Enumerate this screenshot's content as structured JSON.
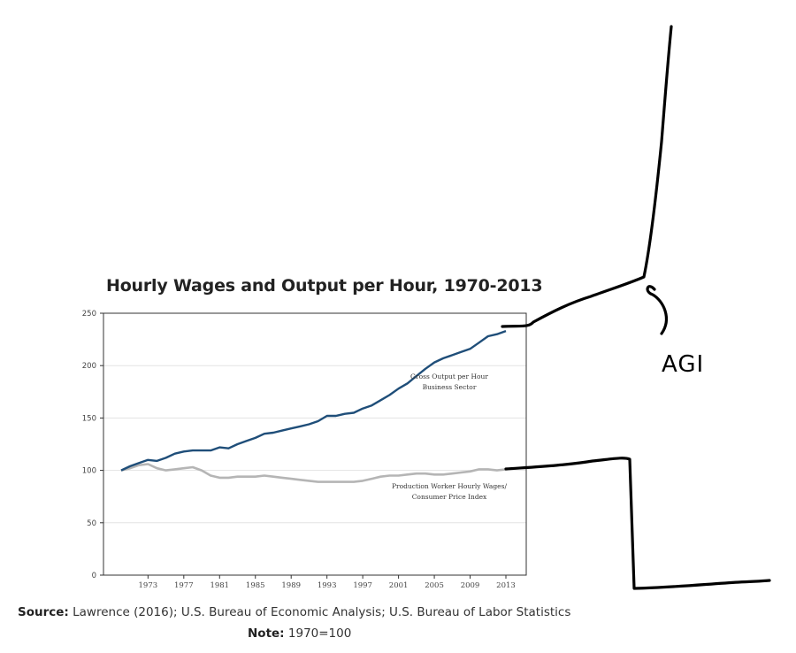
{
  "chart_data": {
    "type": "line",
    "title": "Hourly Wages and Output per Hour, 1970-2013",
    "xlim": [
      1970,
      2013
    ],
    "ylim": [
      0,
      250
    ],
    "y_ticks": [
      0,
      50,
      100,
      150,
      200,
      250
    ],
    "x_ticks": [
      1973,
      1977,
      1981,
      1985,
      1989,
      1993,
      1997,
      2001,
      2005,
      2009,
      2013
    ],
    "grid": true,
    "x": [
      1970,
      1971,
      1972,
      1973,
      1974,
      1975,
      1976,
      1977,
      1978,
      1979,
      1980,
      1981,
      1982,
      1983,
      1984,
      1985,
      1986,
      1987,
      1988,
      1989,
      1990,
      1991,
      1992,
      1993,
      1994,
      1995,
      1996,
      1997,
      1998,
      1999,
      2000,
      2001,
      2002,
      2003,
      2004,
      2005,
      2006,
      2007,
      2008,
      2009,
      2010,
      2011,
      2012,
      2013
    ],
    "series": [
      {
        "name": "Gross Output per Hour Business Sector",
        "label_lines": [
          "Gross Output per Hour",
          "Business Sector"
        ],
        "color": "#1f4e79",
        "values": [
          100,
          104,
          107,
          110,
          109,
          112,
          116,
          118,
          119,
          119,
          119,
          122,
          121,
          125,
          128,
          131,
          135,
          136,
          138,
          140,
          142,
          144,
          147,
          152,
          152,
          154,
          155,
          159,
          162,
          167,
          172,
          178,
          183,
          190,
          197,
          203,
          207,
          210,
          213,
          216,
          222,
          228,
          230,
          233
        ]
      },
      {
        "name": "Production Worker Hourly Wages/ Consumer Price Index",
        "label_lines": [
          "Production Worker Hourly Wages/",
          "Consumer Price Index"
        ],
        "color": "#b5b5b5",
        "values": [
          100,
          102,
          105,
          106,
          102,
          100,
          101,
          102,
          103,
          100,
          95,
          93,
          93,
          94,
          94,
          94,
          95,
          94,
          93,
          92,
          91,
          90,
          89,
          89,
          89,
          89,
          89,
          90,
          92,
          94,
          95,
          95,
          96,
          97,
          97,
          96,
          96,
          97,
          98,
          99,
          101,
          101,
          100,
          101
        ]
      }
    ]
  },
  "annotations": {
    "handwritten_label": "AGI"
  },
  "footer": {
    "source_label": "Source:",
    "source_text": " Lawrence (2016); U.S. Bureau of Economic Analysis; U.S. Bureau of Labor Statistics",
    "note_label": "Note:",
    "note_text": " 1970=100"
  },
  "colors": {
    "output_line": "#1f4e79",
    "wage_line": "#b5b5b5",
    "ink": "#000000"
  }
}
